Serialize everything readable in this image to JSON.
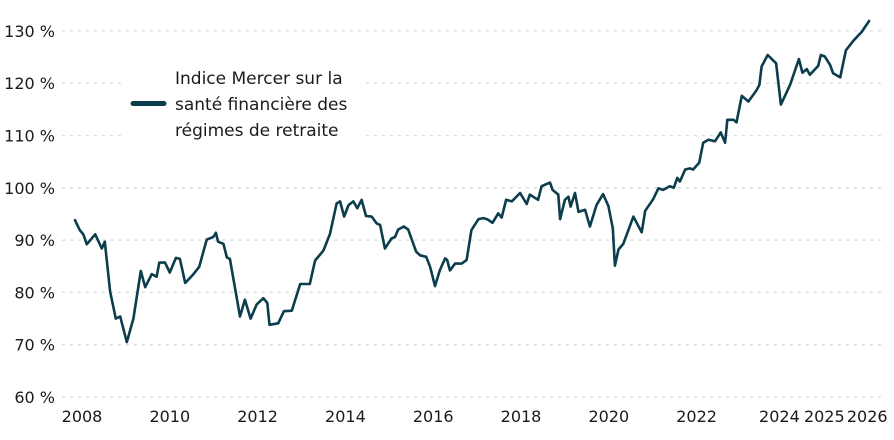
{
  "chart_data": {
    "type": "line",
    "title": "",
    "xlabel": "",
    "ylabel": "",
    "xlim": [
      2007.8,
      2026.2
    ],
    "ylim": [
      60,
      130
    ],
    "grid": {
      "y": true,
      "x": false,
      "style": "dashed"
    },
    "legend_placement": "top-left",
    "x_ticks": [
      {
        "value": 2008,
        "label": "2008"
      },
      {
        "value": 2010,
        "label": "2010"
      },
      {
        "value": 2012,
        "label": "2012"
      },
      {
        "value": 2014,
        "label": "2014"
      },
      {
        "value": 2016,
        "label": "2016"
      },
      {
        "value": 2018,
        "label": "2018"
      },
      {
        "value": 2020,
        "label": "2020"
      },
      {
        "value": 2022,
        "label": "2022"
      },
      {
        "value": 2024,
        "label": "2024"
      },
      {
        "value": 2025,
        "label": "2025"
      },
      {
        "value": 2026,
        "label": "2026"
      }
    ],
    "y_ticks": [
      {
        "value": 60,
        "label": "60 %"
      },
      {
        "value": 70,
        "label": "70 %"
      },
      {
        "value": 80,
        "label": "80 %"
      },
      {
        "value": 90,
        "label": "90 %"
      },
      {
        "value": 100,
        "label": "100 %"
      },
      {
        "value": 110,
        "label": "110 %"
      },
      {
        "value": 120,
        "label": "120 %"
      },
      {
        "value": 130,
        "label": "130 %"
      }
    ],
    "series": [
      {
        "name": "Indice Mercer sur la santé financière des régimes de retraite",
        "legend_lines": [
          "Indice Mercer sur la",
          "santé financière des",
          "régimes de retraite"
        ],
        "color": "#0b3d4c",
        "x": [
          2007.84,
          2007.95,
          2008.03,
          2008.11,
          2008.3,
          2008.45,
          2008.52,
          2008.64,
          2008.77,
          2008.87,
          2009.02,
          2009.17,
          2009.34,
          2009.44,
          2009.59,
          2009.7,
          2009.76,
          2009.89,
          2010.0,
          2010.14,
          2010.23,
          2010.35,
          2010.54,
          2010.67,
          2010.84,
          2010.99,
          2011.05,
          2011.1,
          2011.22,
          2011.3,
          2011.37,
          2011.6,
          2011.71,
          2011.84,
          2011.98,
          2012.13,
          2012.22,
          2012.27,
          2012.47,
          2012.6,
          2012.78,
          2012.97,
          2013.19,
          2013.31,
          2013.5,
          2013.65,
          2013.8,
          2013.88,
          2013.97,
          2014.07,
          2014.18,
          2014.27,
          2014.37,
          2014.47,
          2014.6,
          2014.71,
          2014.79,
          2014.9,
          2015.05,
          2015.13,
          2015.2,
          2015.33,
          2015.43,
          2015.61,
          2015.7,
          2015.84,
          2015.93,
          2016.04,
          2016.15,
          2016.27,
          2016.32,
          2016.38,
          2016.5,
          2016.65,
          2016.76,
          2016.87,
          2017.03,
          2017.14,
          2017.23,
          2017.35,
          2017.48,
          2017.56,
          2017.66,
          2017.79,
          2017.98,
          2018.13,
          2018.2,
          2018.39,
          2018.47,
          2018.66,
          2018.72,
          2018.85,
          2018.89,
          2019.0,
          2019.08,
          2019.13,
          2019.23,
          2019.31,
          2019.46,
          2019.57,
          2019.72,
          2019.87,
          2019.99,
          2020.09,
          2020.14,
          2020.22,
          2020.33,
          2020.56,
          2020.75,
          2020.83,
          2021.01,
          2021.13,
          2021.24,
          2021.39,
          2021.48,
          2021.56,
          2021.62,
          2021.74,
          2021.85,
          2021.92,
          2022.06,
          2022.15,
          2022.27,
          2022.42,
          2022.55,
          2022.65,
          2022.7,
          2022.84,
          2022.91,
          2023.03,
          2023.18,
          2023.37,
          2023.43,
          2023.48,
          2023.62,
          2023.81,
          2023.92,
          2024.13,
          2024.33,
          2024.41,
          2024.51,
          2024.58,
          2024.77,
          2024.83,
          2024.92,
          2025.04,
          2025.11,
          2025.27,
          2025.4,
          2025.57,
          2025.76,
          2025.93
        ],
        "values": [
          93.8,
          91.9,
          91.1,
          89.2,
          91.1,
          88.4,
          89.7,
          80.2,
          75.0,
          75.4,
          70.5,
          75.0,
          84.1,
          81.0,
          83.5,
          83.0,
          85.7,
          85.7,
          83.8,
          86.6,
          86.4,
          81.8,
          83.5,
          84.9,
          90.1,
          90.6,
          91.4,
          89.7,
          89.3,
          86.7,
          86.4,
          75.4,
          78.6,
          75.0,
          77.7,
          78.9,
          78.0,
          73.8,
          74.1,
          76.4,
          76.5,
          81.6,
          81.6,
          86.1,
          88.0,
          91.2,
          97.0,
          97.4,
          94.5,
          96.7,
          97.4,
          96.1,
          97.7,
          94.6,
          94.5,
          93.2,
          92.9,
          88.4,
          90.3,
          90.6,
          92.0,
          92.6,
          92.0,
          87.8,
          87.1,
          86.8,
          84.9,
          81.2,
          84.2,
          86.5,
          86.2,
          84.2,
          85.5,
          85.5,
          86.2,
          91.9,
          94.0,
          94.2,
          94.0,
          93.3,
          95.1,
          94.3,
          97.7,
          97.4,
          99.0,
          96.9,
          98.7,
          97.7,
          100.3,
          101.0,
          99.6,
          98.7,
          94.0,
          97.7,
          98.3,
          96.4,
          99.0,
          95.4,
          95.8,
          92.6,
          96.7,
          98.8,
          96.5,
          92.3,
          85.1,
          88.2,
          89.3,
          94.5,
          91.5,
          95.6,
          97.8,
          99.9,
          99.6,
          100.3,
          100.0,
          101.9,
          101.2,
          103.5,
          103.7,
          103.5,
          104.8,
          108.6,
          109.2,
          108.9,
          110.6,
          108.6,
          113.0,
          113.0,
          112.5,
          117.6,
          116.5,
          118.7,
          119.7,
          123.2,
          125.4,
          123.8,
          115.9,
          119.7,
          124.6,
          122.0,
          122.7,
          121.6,
          123.3,
          125.4,
          125.1,
          123.5,
          121.9,
          121.1,
          126.3,
          128.1,
          129.8,
          131.9
        ]
      }
    ]
  },
  "colors": {
    "line": "#0b3d4c",
    "grid": "#d3dede",
    "text": "#1a1a1a"
  }
}
